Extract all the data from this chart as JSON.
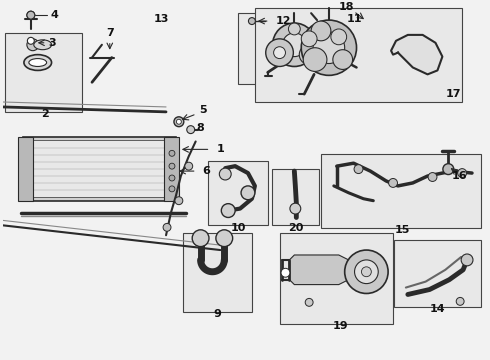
{
  "bg_color": "#f2f2f2",
  "line_color": "#2a2a2a",
  "box_bg": "#e8e8e8",
  "box_edge": "#444444",
  "white": "#ffffff",
  "gray_fill": "#c8c8c8",
  "label_color": "#111111"
}
